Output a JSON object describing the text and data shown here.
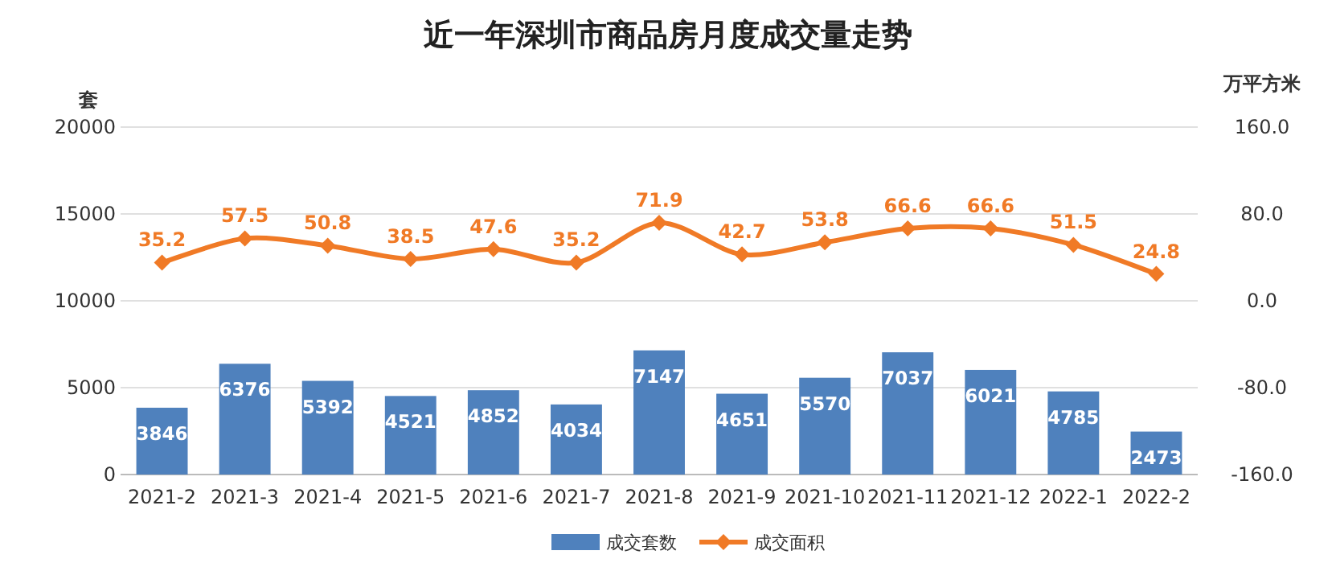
{
  "chart_data": {
    "type": "bar",
    "title": "近一年深圳市商品房月度成交量走势",
    "ylabel": "套",
    "y2label": "万平方米",
    "categories": [
      "2021-2",
      "2021-3",
      "2021-4",
      "2021-5",
      "2021-6",
      "2021-7",
      "2021-8",
      "2021-9",
      "2021-10",
      "2021-11",
      "2021-12",
      "2022-1",
      "2022-2"
    ],
    "series": [
      {
        "name": "成交套数",
        "color": "#4f81bd",
        "values": [
          3846,
          6376,
          5392,
          4521,
          4852,
          4034,
          7147,
          4651,
          5570,
          7037,
          6021,
          4785,
          2473
        ]
      },
      {
        "name": "成交面积",
        "type": "line",
        "axis": "y2",
        "color": "#f07a26",
        "marker": "diamond",
        "values": [
          35.2,
          57.5,
          50.8,
          38.5,
          47.6,
          35.2,
          71.9,
          42.7,
          53.8,
          66.6,
          66.6,
          51.5,
          24.8
        ]
      }
    ],
    "ylim": [
      0,
      20000
    ],
    "yticks": [
      0,
      5000,
      10000,
      15000,
      20000
    ],
    "y2lim": [
      -160,
      160
    ],
    "y2ticks": [
      {
        "value": -160,
        "label": "-160.0"
      },
      {
        "value": -80,
        "label": "-80.0"
      },
      {
        "value": 0,
        "label": "0.0"
      },
      {
        "value": 80,
        "label": "80.0"
      },
      {
        "value": 160,
        "label": "160.0"
      }
    ],
    "grid": "y",
    "legend": "bottom",
    "data_labels": true
  }
}
